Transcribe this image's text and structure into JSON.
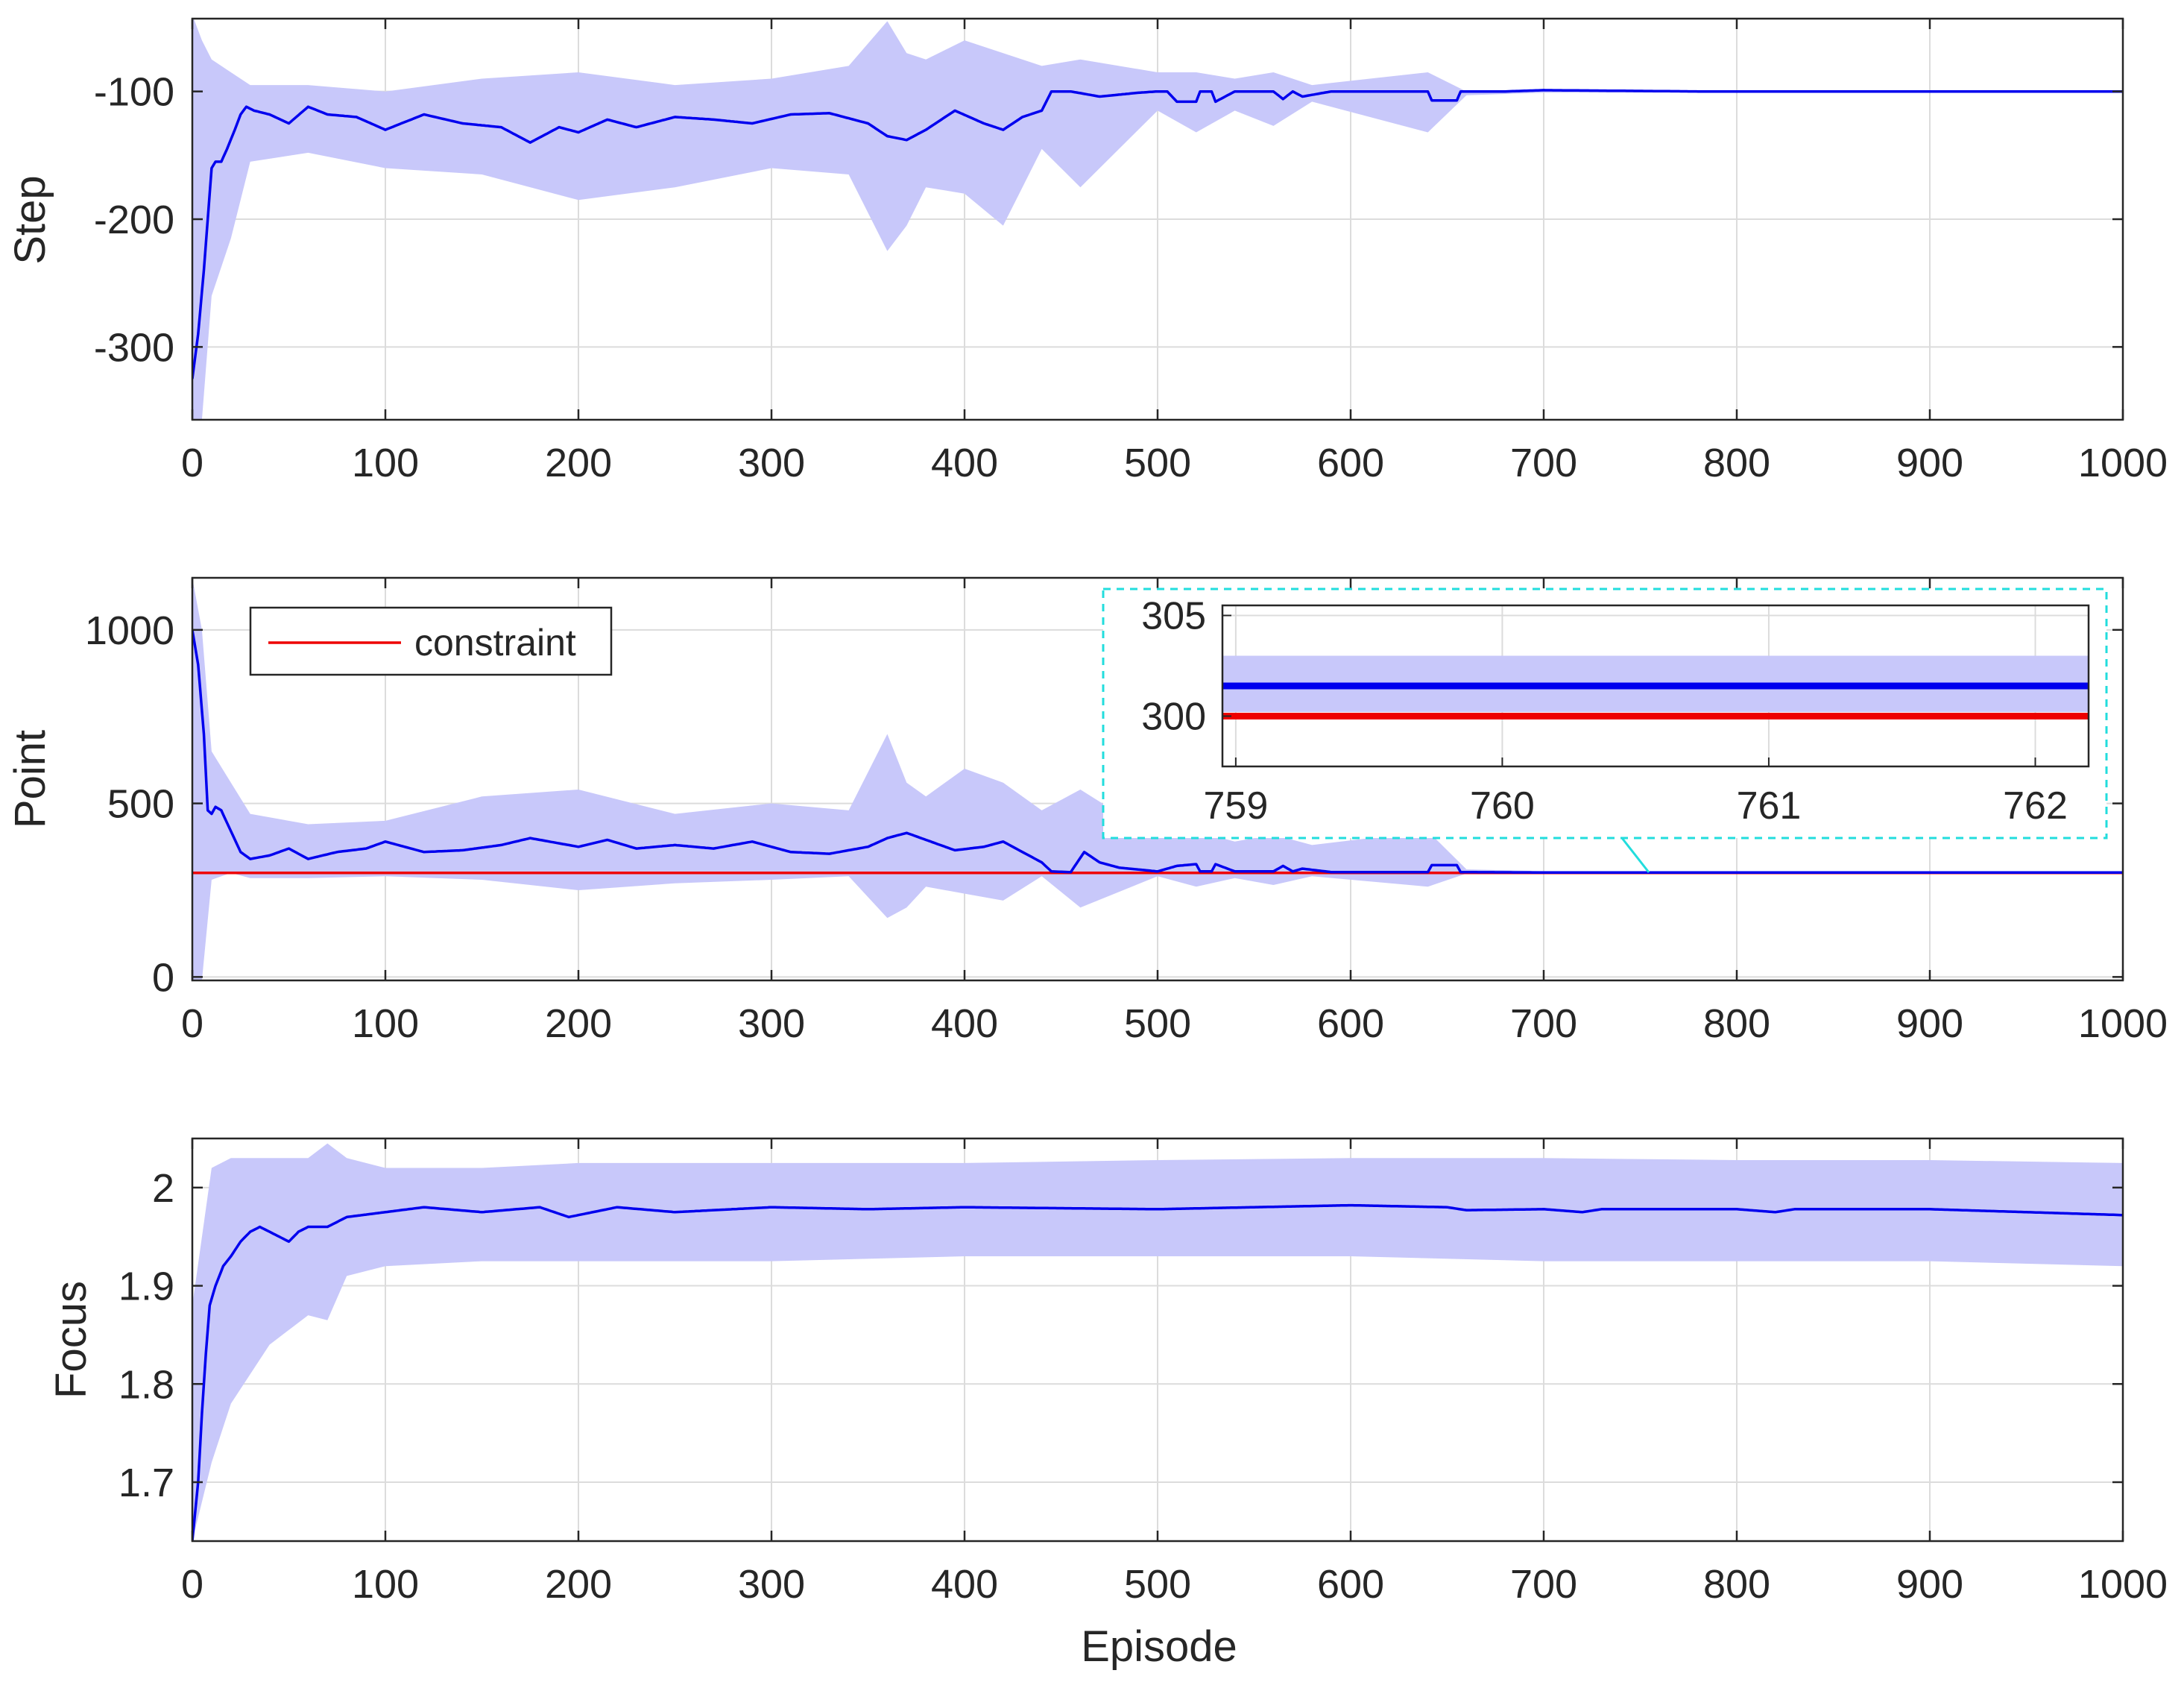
{
  "colors": {
    "mean_line": "#0000ee",
    "band": "#c8c8fa",
    "constraint": "#ee0000",
    "grid": "#dcdcdc",
    "axes": "#262626",
    "inset_box": "#22dddd"
  },
  "chart_data": [
    {
      "type": "line",
      "id": "step",
      "ylabel": "Step",
      "xlabel": "",
      "xlim": [
        0,
        1000
      ],
      "ylim": [
        -357,
        -43
      ],
      "xticks": [
        0,
        100,
        200,
        300,
        400,
        500,
        600,
        700,
        800,
        900,
        1000
      ],
      "xtick_labels": [
        "0",
        "100",
        "200",
        "300",
        "400",
        "500",
        "600",
        "700",
        "800",
        "900",
        "1000"
      ],
      "yticks": [
        -100,
        -200,
        -300
      ],
      "ytick_labels": [
        "-100",
        "-200",
        "-300"
      ],
      "series": [
        {
          "name": "mean",
          "x": [
            0,
            3,
            6,
            8,
            10,
            12,
            15,
            18,
            22,
            25,
            28,
            32,
            40,
            50,
            60,
            70,
            85,
            100,
            120,
            140,
            160,
            175,
            190,
            200,
            215,
            230,
            250,
            270,
            290,
            310,
            330,
            350,
            360,
            370,
            380,
            395,
            410,
            420,
            430,
            440,
            445,
            455,
            470,
            490,
            500,
            505,
            510,
            520,
            522,
            528,
            530,
            540,
            560,
            565,
            570,
            575,
            590,
            640,
            642,
            655,
            657,
            680,
            700,
            780,
            1000
          ],
          "y": [
            -325,
            -290,
            -240,
            -200,
            -160,
            -155,
            -155,
            -145,
            -130,
            -118,
            -112,
            -115,
            -118,
            -125,
            -112,
            -118,
            -120,
            -130,
            -118,
            -125,
            -128,
            -140,
            -128,
            -132,
            -122,
            -128,
            -120,
            -122,
            -125,
            -118,
            -117,
            -125,
            -135,
            -138,
            -130,
            -115,
            -125,
            -130,
            -120,
            -115,
            -100,
            -100,
            -104,
            -101,
            -100,
            -100,
            -108,
            -108,
            -100,
            -100,
            -108,
            -100,
            -100,
            -106,
            -100,
            -104,
            -100,
            -100,
            -107,
            -107,
            -100,
            -100,
            -99,
            -100,
            -100
          ]
        },
        {
          "name": "band_upper",
          "x": [
            0,
            5,
            10,
            20,
            30,
            60,
            100,
            150,
            200,
            250,
            300,
            340,
            360,
            370,
            380,
            400,
            420,
            440,
            460,
            500,
            520,
            540,
            560,
            580,
            640,
            660,
            700,
            1000
          ],
          "y": [
            -40,
            -60,
            -75,
            -85,
            -95,
            -95,
            -100,
            -90,
            -85,
            -95,
            -90,
            -80,
            -45,
            -70,
            -75,
            -60,
            -70,
            -80,
            -75,
            -85,
            -85,
            -90,
            -85,
            -95,
            -85,
            -100,
            -99,
            -100
          ],
          "color": "band"
        },
        {
          "name": "band_lower",
          "x": [
            0,
            5,
            10,
            20,
            30,
            60,
            100,
            150,
            200,
            250,
            300,
            340,
            360,
            370,
            380,
            400,
            420,
            440,
            460,
            500,
            520,
            540,
            560,
            580,
            640,
            660,
            700,
            1000
          ],
          "y": [
            -357,
            -357,
            -260,
            -215,
            -155,
            -148,
            -160,
            -165,
            -185,
            -175,
            -160,
            -165,
            -225,
            -205,
            -175,
            -180,
            -205,
            -145,
            -175,
            -115,
            -132,
            -115,
            -127,
            -108,
            -132,
            -103,
            -101,
            -100
          ],
          "color": "band"
        }
      ]
    },
    {
      "type": "line",
      "id": "point",
      "ylabel": "Point",
      "xlabel": "",
      "xlim": [
        0,
        1000
      ],
      "ylim": [
        -10,
        1150
      ],
      "xticks": [
        0,
        100,
        200,
        300,
        400,
        500,
        600,
        700,
        800,
        900,
        1000
      ],
      "xtick_labels": [
        "0",
        "100",
        "200",
        "300",
        "400",
        "500",
        "600",
        "700",
        "800",
        "900",
        "1000"
      ],
      "yticks": [
        1000,
        500,
        0
      ],
      "ytick_labels": [
        "1000",
        "500",
        "0"
      ],
      "legend": {
        "entries": [
          "constraint"
        ],
        "placement": "top-left"
      },
      "series": [
        {
          "name": "mean",
          "x": [
            0,
            3,
            6,
            8,
            10,
            12,
            15,
            20,
            25,
            30,
            40,
            50,
            60,
            75,
            90,
            100,
            120,
            140,
            160,
            175,
            190,
            200,
            215,
            230,
            250,
            270,
            290,
            310,
            330,
            350,
            360,
            370,
            380,
            395,
            410,
            420,
            430,
            440,
            445,
            455,
            462,
            470,
            480,
            500,
            510,
            520,
            522,
            528,
            530,
            540,
            560,
            565,
            570,
            575,
            590,
            640,
            642,
            655,
            657,
            700,
            1000
          ],
          "y": [
            1000,
            900,
            700,
            480,
            470,
            490,
            480,
            420,
            360,
            340,
            350,
            370,
            340,
            360,
            370,
            390,
            360,
            365,
            380,
            400,
            385,
            375,
            395,
            370,
            380,
            370,
            390,
            360,
            355,
            375,
            400,
            415,
            395,
            365,
            375,
            390,
            360,
            330,
            304,
            302,
            360,
            330,
            315,
            304,
            320,
            325,
            304,
            304,
            325,
            304,
            304,
            320,
            304,
            312,
            302,
            302,
            322,
            322,
            302,
            301,
            301
          ]
        },
        {
          "name": "band_upper",
          "x": [
            0,
            5,
            10,
            20,
            30,
            60,
            100,
            150,
            200,
            250,
            300,
            340,
            360,
            370,
            380,
            400,
            420,
            440,
            460,
            500,
            520,
            540,
            560,
            580,
            640,
            660,
            700,
            1000
          ],
          "y": [
            1150,
            1000,
            650,
            560,
            470,
            440,
            450,
            520,
            540,
            470,
            500,
            480,
            700,
            560,
            520,
            600,
            560,
            480,
            540,
            400,
            420,
            390,
            410,
            380,
            420,
            310,
            305,
            303
          ],
          "color": "band"
        },
        {
          "name": "band_lower",
          "x": [
            0,
            5,
            10,
            20,
            30,
            60,
            100,
            150,
            200,
            250,
            300,
            340,
            360,
            370,
            380,
            400,
            420,
            440,
            460,
            500,
            520,
            540,
            560,
            580,
            640,
            660,
            700,
            1000
          ],
          "y": [
            -10,
            -10,
            280,
            300,
            285,
            285,
            290,
            280,
            250,
            270,
            280,
            290,
            170,
            200,
            260,
            240,
            220,
            290,
            200,
            290,
            260,
            285,
            265,
            290,
            260,
            298,
            299,
            299
          ],
          "color": "band"
        },
        {
          "name": "constraint",
          "x": [
            0,
            1000
          ],
          "y": [
            300,
            300
          ],
          "color": "constraint"
        }
      ],
      "inset": {
        "xlim": [
          758.95,
          762.2
        ],
        "ylim": [
          297.5,
          305.5
        ],
        "xticks": [
          759,
          760,
          761,
          762
        ],
        "xtick_labels": [
          "759",
          "760",
          "761",
          "762"
        ],
        "yticks": [
          305,
          300
        ],
        "ytick_labels": [
          "305",
          "300"
        ],
        "mean": 301.5,
        "band_upper": 303.0,
        "band_lower": 300.2,
        "constraint": 300
      }
    },
    {
      "type": "line",
      "id": "focus",
      "ylabel": "Focus",
      "xlabel": "Episode",
      "xlim": [
        0,
        1000
      ],
      "ylim": [
        1.64,
        2.05
      ],
      "xticks": [
        0,
        100,
        200,
        300,
        400,
        500,
        600,
        700,
        800,
        900,
        1000
      ],
      "xtick_labels": [
        "0",
        "100",
        "200",
        "300",
        "400",
        "500",
        "600",
        "700",
        "800",
        "900",
        "1000"
      ],
      "yticks": [
        2,
        1.9,
        1.8,
        1.7
      ],
      "ytick_labels": [
        "2",
        "1.9",
        "1.8",
        "1.7"
      ],
      "series": [
        {
          "name": "mean",
          "x": [
            0,
            3,
            5,
            7,
            9,
            12,
            16,
            20,
            25,
            30,
            35,
            40,
            45,
            50,
            55,
            60,
            70,
            80,
            100,
            120,
            150,
            180,
            195,
            220,
            250,
            300,
            350,
            400,
            500,
            600,
            650,
            660,
            700,
            720,
            730,
            800,
            820,
            830,
            900,
            950,
            1000
          ],
          "y": [
            1.64,
            1.7,
            1.77,
            1.83,
            1.88,
            1.9,
            1.92,
            1.93,
            1.945,
            1.955,
            1.96,
            1.955,
            1.95,
            1.945,
            1.955,
            1.96,
            1.96,
            1.97,
            1.975,
            1.98,
            1.975,
            1.98,
            1.97,
            1.98,
            1.975,
            1.98,
            1.978,
            1.98,
            1.978,
            1.982,
            1.98,
            1.977,
            1.978,
            1.975,
            1.978,
            1.978,
            1.975,
            1.978,
            1.978,
            1.975,
            1.972
          ]
        },
        {
          "name": "band_upper",
          "x": [
            0,
            10,
            20,
            40,
            60,
            70,
            80,
            100,
            150,
            200,
            300,
            400,
            500,
            600,
            700,
            800,
            900,
            1000
          ],
          "y": [
            1.88,
            2.02,
            2.03,
            2.03,
            2.03,
            2.045,
            2.03,
            2.02,
            2.02,
            2.025,
            2.025,
            2.025,
            2.028,
            2.03,
            2.03,
            2.028,
            2.028,
            2.025
          ],
          "color": "band"
        },
        {
          "name": "band_lower",
          "x": [
            0,
            10,
            20,
            40,
            60,
            70,
            80,
            100,
            150,
            200,
            300,
            400,
            500,
            600,
            700,
            800,
            900,
            1000
          ],
          "y": [
            1.64,
            1.72,
            1.78,
            1.84,
            1.87,
            1.865,
            1.91,
            1.92,
            1.925,
            1.925,
            1.925,
            1.93,
            1.93,
            1.93,
            1.925,
            1.925,
            1.925,
            1.92
          ],
          "color": "band"
        }
      ]
    }
  ]
}
